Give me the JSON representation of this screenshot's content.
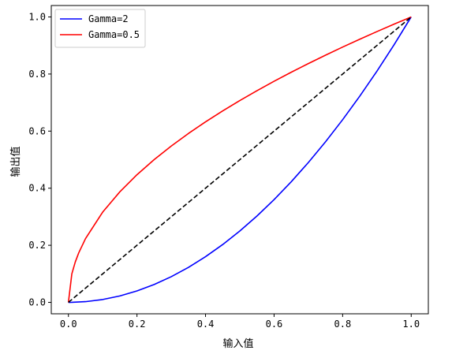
{
  "chart_data": {
    "type": "line",
    "title": "",
    "xlabel": "输入值",
    "ylabel": "输出值",
    "xlim": [
      -0.05,
      1.05
    ],
    "ylim": [
      -0.04,
      1.04
    ],
    "xticks": [
      0.0,
      0.2,
      0.4,
      0.6,
      0.8,
      1.0
    ],
    "yticks": [
      0.0,
      0.2,
      0.4,
      0.6,
      0.8,
      1.0
    ],
    "xtick_labels": [
      "0.0",
      "0.2",
      "0.4",
      "0.6",
      "0.8",
      "1.0"
    ],
    "ytick_labels": [
      "0.0",
      "0.2",
      "0.4",
      "0.6",
      "0.8",
      "1.0"
    ],
    "grid": false,
    "legend_position": "top-left",
    "series": [
      {
        "name": "Gamma=2",
        "color": "#0000ff",
        "style": "solid",
        "x": [
          0.0,
          0.01,
          0.05,
          0.1,
          0.15,
          0.2,
          0.25,
          0.3,
          0.35,
          0.4,
          0.45,
          0.5,
          0.55,
          0.6,
          0.65,
          0.7,
          0.75,
          0.8,
          0.85,
          0.9,
          0.95,
          1.0
        ],
        "y": [
          0.0,
          0.0001,
          0.0025,
          0.01,
          0.0225,
          0.04,
          0.0625,
          0.09,
          0.1225,
          0.16,
          0.2025,
          0.25,
          0.3025,
          0.36,
          0.4225,
          0.49,
          0.5625,
          0.64,
          0.7225,
          0.81,
          0.9025,
          1.0
        ]
      },
      {
        "name": "Gamma=0.5",
        "color": "#ff0000",
        "style": "solid",
        "x": [
          0.0,
          0.01,
          0.02,
          0.03,
          0.05,
          0.1,
          0.15,
          0.2,
          0.25,
          0.3,
          0.35,
          0.4,
          0.45,
          0.5,
          0.55,
          0.6,
          0.65,
          0.7,
          0.75,
          0.8,
          0.85,
          0.9,
          0.95,
          1.0
        ],
        "y": [
          0.0,
          0.1,
          0.1414,
          0.1732,
          0.2236,
          0.3162,
          0.3873,
          0.4472,
          0.5,
          0.5477,
          0.5916,
          0.6325,
          0.6708,
          0.7071,
          0.7416,
          0.7746,
          0.8062,
          0.8367,
          0.866,
          0.8944,
          0.922,
          0.9487,
          0.9747,
          1.0
        ]
      },
      {
        "name": "",
        "color": "#000000",
        "style": "dashed",
        "x": [
          0.0,
          1.0
        ],
        "y": [
          0.0,
          1.0
        ]
      }
    ]
  }
}
